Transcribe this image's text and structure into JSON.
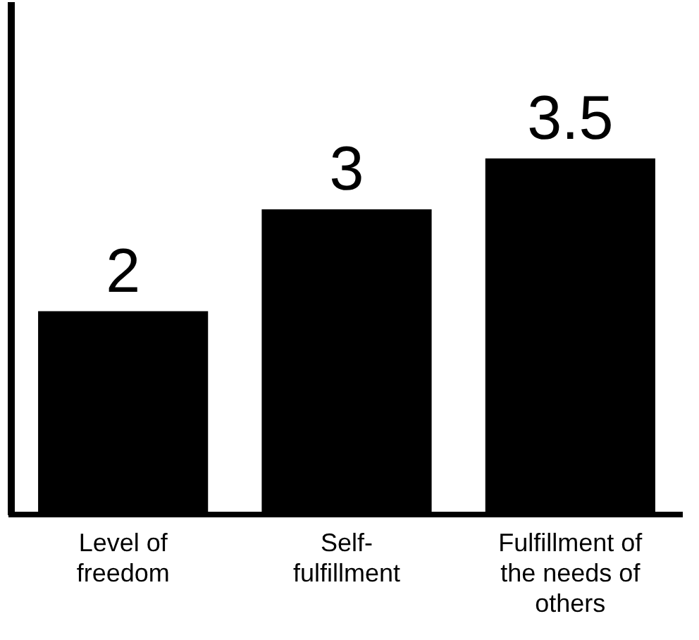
{
  "chart_data": {
    "type": "bar",
    "categories": [
      "Level of freedom",
      "Self-fulfillment",
      "Fulfillment of the needs of others"
    ],
    "values": [
      2,
      3,
      3.5
    ],
    "color": "#000000",
    "ylim": [
      0,
      5
    ],
    "tick_labels": "x",
    "data_labels": true,
    "grid": false,
    "legend": false
  }
}
